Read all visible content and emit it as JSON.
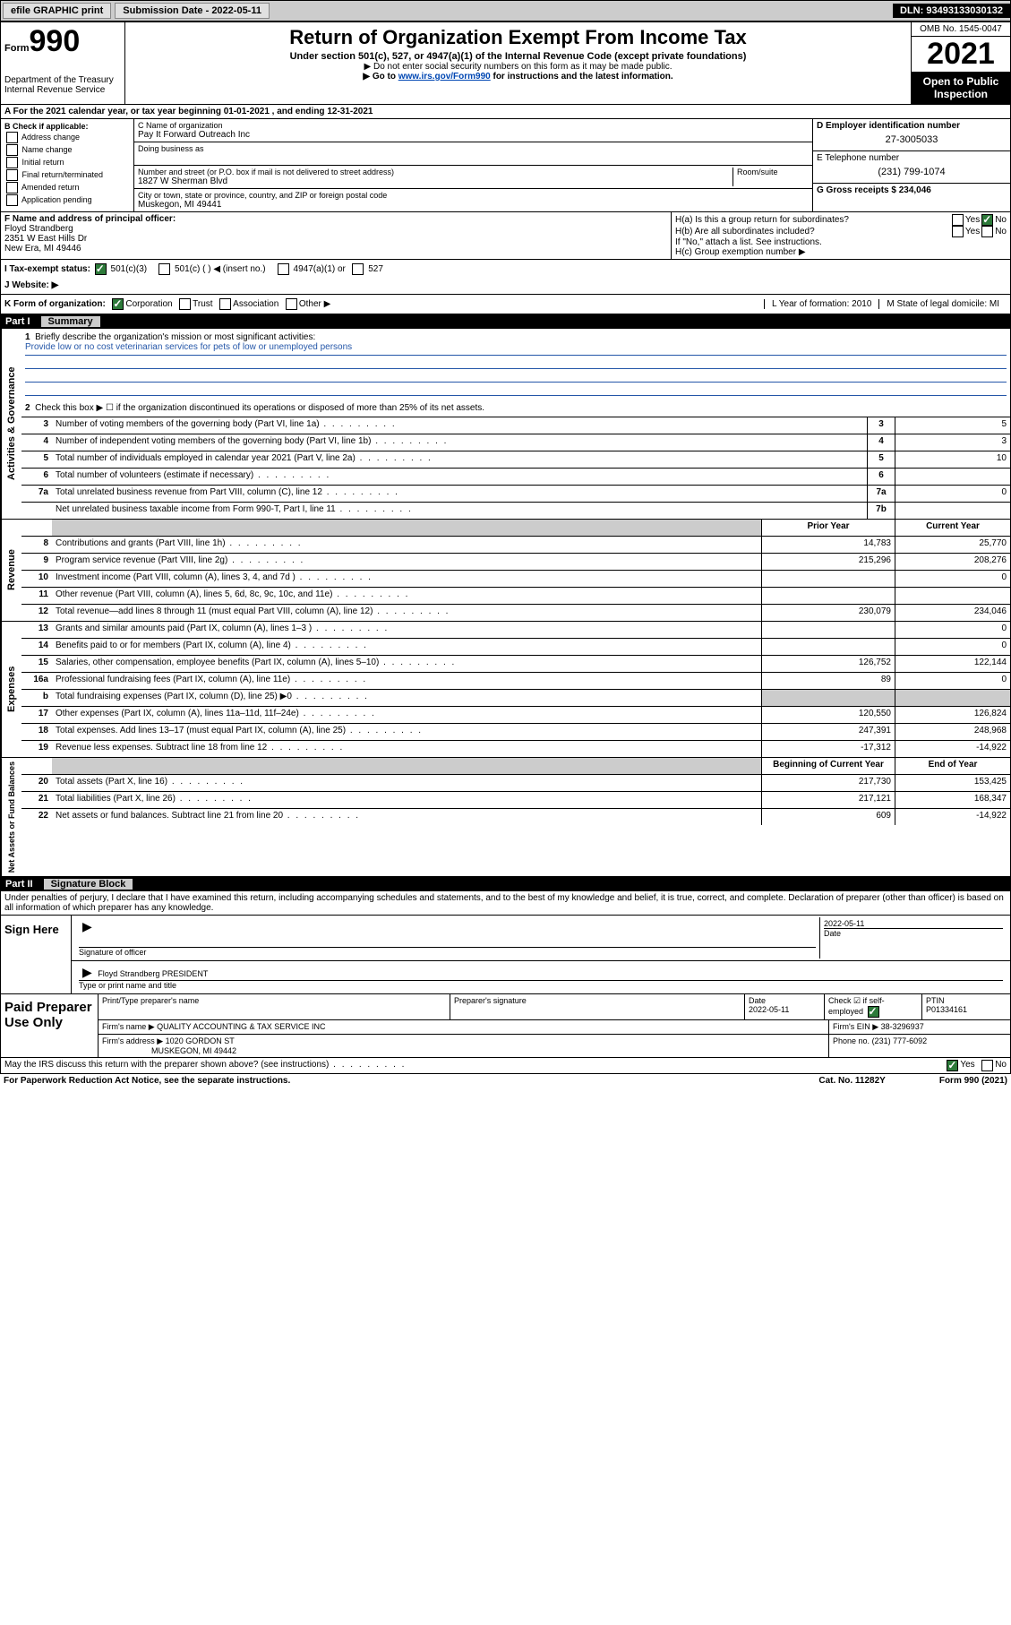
{
  "topbar": {
    "efile": "efile GRAPHIC print",
    "submission_label": "Submission Date - 2022-05-11",
    "dln": "DLN: 93493133030132"
  },
  "header": {
    "form_label": "Form",
    "form_number": "990",
    "title": "Return of Organization Exempt From Income Tax",
    "subtitle": "Under section 501(c), 527, or 4947(a)(1) of the Internal Revenue Code (except private foundations)",
    "note1": "▶ Do not enter social security numbers on this form as it may be made public.",
    "note2_pre": "▶ Go to ",
    "note2_link": "www.irs.gov/Form990",
    "note2_post": " for instructions and the latest information.",
    "dept": "Department of the Treasury\nInternal Revenue Service",
    "omb": "OMB No. 1545-0047",
    "year": "2021",
    "inspection": "Open to Public Inspection"
  },
  "row_a": "A For the 2021 calendar year, or tax year beginning 01-01-2021    , and ending 12-31-2021",
  "col_b": {
    "title": "B Check if applicable:",
    "items": [
      "Address change",
      "Name change",
      "Initial return",
      "Final return/terminated",
      "Amended return",
      "Application pending"
    ]
  },
  "col_c": {
    "name_label": "C Name of organization",
    "name": "Pay It Forward Outreach Inc",
    "dba_label": "Doing business as",
    "addr_label": "Number and street (or P.O. box if mail is not delivered to street address)",
    "room_label": "Room/suite",
    "addr": "1827 W Sherman Blvd",
    "city_label": "City or town, state or province, country, and ZIP or foreign postal code",
    "city": "Muskegon, MI  49441"
  },
  "col_de": {
    "d_label": "D Employer identification number",
    "d_val": "27-3005033",
    "e_label": "E Telephone number",
    "e_val": "(231) 799-1074",
    "g_label": "G Gross receipts $ 234,046"
  },
  "col_f": {
    "label": "F  Name and address of principal officer:",
    "name": "Floyd Strandberg",
    "addr": "2351 W East Hills Dr",
    "city": "New Era, MI  49446"
  },
  "col_h": {
    "ha": "H(a)  Is this a group return for subordinates?",
    "hb": "H(b)  Are all subordinates included?",
    "hb_note": "If \"No,\" attach a list. See instructions.",
    "hc": "H(c)  Group exemption number ▶"
  },
  "row_i": {
    "i_label": "I   Tax-exempt status:",
    "opts": [
      "501(c)(3)",
      "501(c) (   ) ◀ (insert no.)",
      "4947(a)(1) or",
      "527"
    ],
    "j_label": "J   Website: ▶"
  },
  "row_k": {
    "k_label": "K Form of organization:",
    "opts": [
      "Corporation",
      "Trust",
      "Association",
      "Other ▶"
    ],
    "l": "L Year of formation: 2010",
    "m": "M State of legal domicile: MI"
  },
  "part1": {
    "header_label": "Part I",
    "header_title": "Summary",
    "q1": "Briefly describe the organization's mission or most significant activities:",
    "mission": "Provide low or no cost veterinarian services for pets of low or unemployed persons",
    "q2": "Check this box ▶ ☐  if the organization discontinued its operations or disposed of more than 25% of its net assets."
  },
  "gov_rows": [
    {
      "n": "3",
      "d": "Number of voting members of the governing body (Part VI, line 1a)",
      "box": "3",
      "v": "5"
    },
    {
      "n": "4",
      "d": "Number of independent voting members of the governing body (Part VI, line 1b)",
      "box": "4",
      "v": "3"
    },
    {
      "n": "5",
      "d": "Total number of individuals employed in calendar year 2021 (Part V, line 2a)",
      "box": "5",
      "v": "10"
    },
    {
      "n": "6",
      "d": "Total number of volunteers (estimate if necessary)",
      "box": "6",
      "v": ""
    },
    {
      "n": "7a",
      "d": "Total unrelated business revenue from Part VIII, column (C), line 12",
      "box": "7a",
      "v": "0"
    },
    {
      "n": "",
      "d": "Net unrelated business taxable income from Form 990-T, Part I, line 11",
      "box": "7b",
      "v": ""
    }
  ],
  "headrow": {
    "prior": "Prior Year",
    "current": "Current Year"
  },
  "rev_rows": [
    {
      "n": "8",
      "d": "Contributions and grants (Part VIII, line 1h)",
      "p": "14,783",
      "c": "25,770"
    },
    {
      "n": "9",
      "d": "Program service revenue (Part VIII, line 2g)",
      "p": "215,296",
      "c": "208,276"
    },
    {
      "n": "10",
      "d": "Investment income (Part VIII, column (A), lines 3, 4, and 7d )",
      "p": "",
      "c": "0"
    },
    {
      "n": "11",
      "d": "Other revenue (Part VIII, column (A), lines 5, 6d, 8c, 9c, 10c, and 11e)",
      "p": "",
      "c": ""
    },
    {
      "n": "12",
      "d": "Total revenue—add lines 8 through 11 (must equal Part VIII, column (A), line 12)",
      "p": "230,079",
      "c": "234,046"
    }
  ],
  "exp_rows": [
    {
      "n": "13",
      "d": "Grants and similar amounts paid (Part IX, column (A), lines 1–3 )",
      "p": "",
      "c": "0"
    },
    {
      "n": "14",
      "d": "Benefits paid to or for members (Part IX, column (A), line 4)",
      "p": "",
      "c": "0"
    },
    {
      "n": "15",
      "d": "Salaries, other compensation, employee benefits (Part IX, column (A), lines 5–10)",
      "p": "126,752",
      "c": "122,144"
    },
    {
      "n": "16a",
      "d": "Professional fundraising fees (Part IX, column (A), line 11e)",
      "p": "89",
      "c": "0"
    },
    {
      "n": "b",
      "d": "Total fundraising expenses (Part IX, column (D), line 25) ▶0",
      "p": "gray",
      "c": "gray"
    },
    {
      "n": "17",
      "d": "Other expenses (Part IX, column (A), lines 11a–11d, 11f–24e)",
      "p": "120,550",
      "c": "126,824"
    },
    {
      "n": "18",
      "d": "Total expenses. Add lines 13–17 (must equal Part IX, column (A), line 25)",
      "p": "247,391",
      "c": "248,968"
    },
    {
      "n": "19",
      "d": "Revenue less expenses. Subtract line 18 from line 12",
      "p": "-17,312",
      "c": "-14,922"
    }
  ],
  "net_head": {
    "prior": "Beginning of Current Year",
    "current": "End of Year"
  },
  "net_rows": [
    {
      "n": "20",
      "d": "Total assets (Part X, line 16)",
      "p": "217,730",
      "c": "153,425"
    },
    {
      "n": "21",
      "d": "Total liabilities (Part X, line 26)",
      "p": "217,121",
      "c": "168,347"
    },
    {
      "n": "22",
      "d": "Net assets or fund balances. Subtract line 21 from line 20",
      "p": "609",
      "c": "-14,922"
    }
  ],
  "side_labels": {
    "gov": "Activities & Governance",
    "rev": "Revenue",
    "exp": "Expenses",
    "net": "Net Assets or Fund Balances"
  },
  "part2": {
    "header_label": "Part II",
    "header_title": "Signature Block",
    "penalty": "Under penalties of perjury, I declare that I have examined this return, including accompanying schedules and statements, and to the best of my knowledge and belief, it is true, correct, and complete. Declaration of preparer (other than officer) is based on all information of which preparer has any knowledge."
  },
  "sign": {
    "label": "Sign Here",
    "sig_label": "Signature of officer",
    "date": "2022-05-11",
    "date_label": "Date",
    "name": "Floyd Strandberg PRESIDENT",
    "name_label": "Type or print name and title"
  },
  "prep": {
    "label": "Paid Preparer Use Only",
    "h1": "Print/Type preparer's name",
    "h2": "Preparer's signature",
    "h3_label": "Date",
    "h3": "2022-05-11",
    "h4": "Check ☑ if self-employed",
    "h5_label": "PTIN",
    "h5": "P01334161",
    "firm_name_label": "Firm's name    ▶",
    "firm_name": "QUALITY ACCOUNTING & TAX SERVICE INC",
    "firm_ein_label": "Firm's EIN ▶",
    "firm_ein": "38-3296937",
    "firm_addr_label": "Firm's address ▶",
    "firm_addr1": "1020 GORDON ST",
    "firm_addr2": "MUSKEGON, MI  49442",
    "phone_label": "Phone no.",
    "phone": "(231) 777-6092"
  },
  "footer": {
    "q": "May the IRS discuss this return with the preparer shown above? (see instructions)",
    "paperwork": "For Paperwork Reduction Act Notice, see the separate instructions.",
    "cat": "Cat. No. 11282Y",
    "form": "Form 990 (2021)"
  }
}
